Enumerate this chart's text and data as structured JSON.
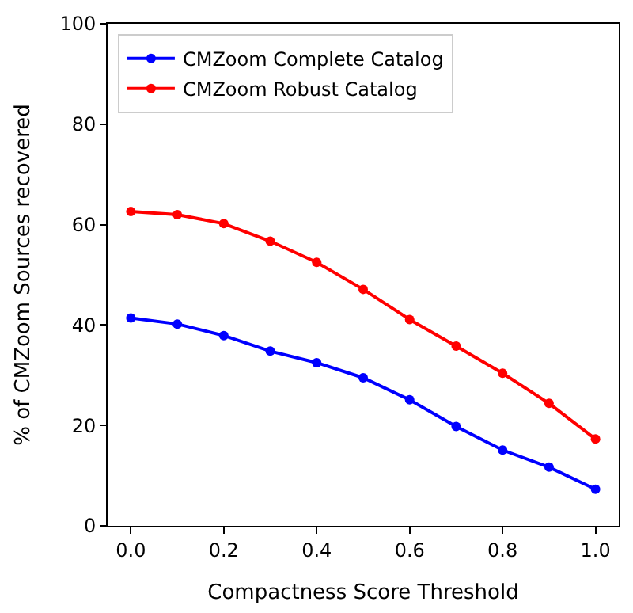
{
  "chart_data": {
    "type": "line",
    "xlabel": "Compactness Score Threshold",
    "ylabel": "% of CMZoom Sources recovered",
    "x": [
      0.0,
      0.1,
      0.2,
      0.3,
      0.4,
      0.5,
      0.6,
      0.7,
      0.8,
      0.9,
      1.0
    ],
    "series": [
      {
        "name": "CMZoom Complete Catalog",
        "color": "#0000ff",
        "values": [
          41.4,
          40.2,
          37.9,
          34.8,
          32.5,
          29.5,
          25.1,
          19.8,
          15.1,
          11.7,
          7.3
        ]
      },
      {
        "name": "CMZoom Robust Catalog",
        "color": "#ff0000",
        "values": [
          62.6,
          62.0,
          60.2,
          56.7,
          52.5,
          47.1,
          41.1,
          35.8,
          30.4,
          24.4,
          17.3
        ]
      }
    ],
    "xlim": [
      -0.05,
      1.05
    ],
    "xticks": [
      {
        "value": 0,
        "label": "0.0"
      },
      {
        "value": 0.2,
        "label": "0.2"
      },
      {
        "value": 0.4,
        "label": "0.4"
      },
      {
        "value": 0.6,
        "label": "0.6"
      },
      {
        "value": 0.8,
        "label": "0.8"
      },
      {
        "value": 1.0,
        "label": "1.0"
      }
    ],
    "ylim": [
      0,
      100
    ],
    "yticks": [
      0,
      20,
      40,
      60,
      80,
      100
    ],
    "legend": "top left",
    "marker": "circle",
    "line_style": "solid"
  }
}
